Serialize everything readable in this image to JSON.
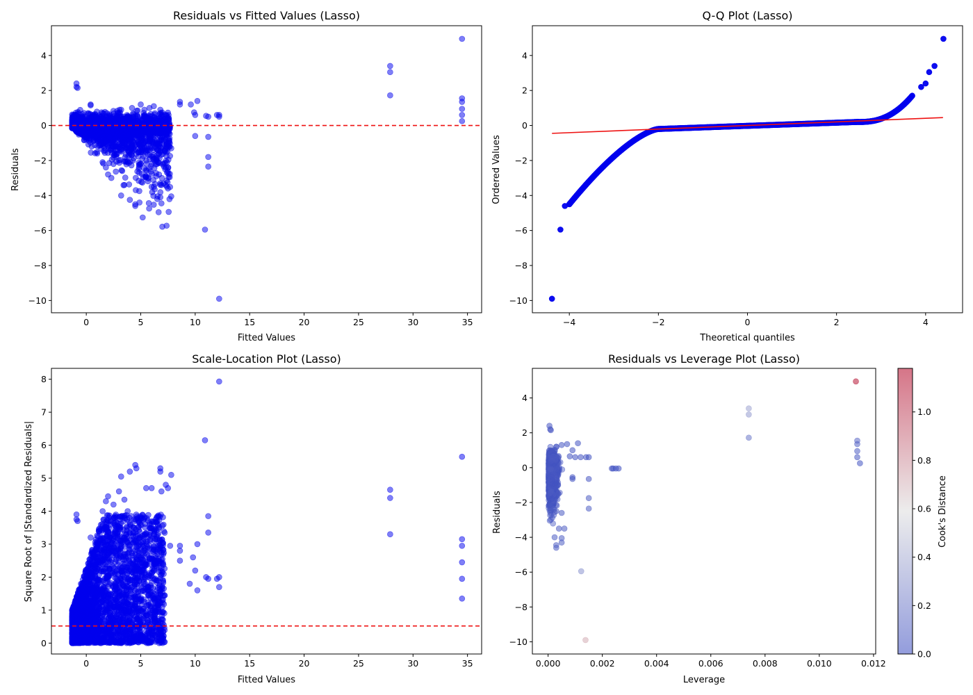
{
  "colors": {
    "points": "#0000ee",
    "refline": "#ee1111",
    "axes": "#000000",
    "cmap_low": "#3b4cc0",
    "cmap_mid": "#dddddd",
    "cmap_high": "#b40426"
  },
  "chart_data": [
    {
      "id": "resid-fitted",
      "type": "scatter",
      "title": "Residuals vs Fitted Values (Lasso)",
      "xlabel": "Fitted Values",
      "ylabel": "Residuals",
      "xlim": [
        -3.2,
        36.3
      ],
      "ylim": [
        -10.7,
        5.7
      ],
      "xticks": [
        0,
        5,
        10,
        15,
        20,
        25,
        30,
        35
      ],
      "yticks": [
        -10,
        -8,
        -6,
        -4,
        -2,
        0,
        2,
        4
      ],
      "tick_labels_x": [
        "0",
        "5",
        "10",
        "15",
        "20",
        "25",
        "30",
        "35"
      ],
      "tick_labels_y": [
        "−10",
        "−8",
        "−6",
        "−4",
        "−2",
        "0",
        "2",
        "4"
      ],
      "reference_line": {
        "orientation": "horizontal",
        "y": 0,
        "style": "dashed"
      },
      "points": [
        [
          -0.9,
          2.4
        ],
        [
          -0.9,
          2.2
        ],
        [
          -0.8,
          2.15
        ],
        [
          0.4,
          1.2
        ],
        [
          0.4,
          1.15
        ],
        [
          1.5,
          0.7
        ],
        [
          2.1,
          0.55
        ],
        [
          3.2,
          0.9
        ],
        [
          4.2,
          1.0
        ],
        [
          5.0,
          1.2
        ],
        [
          5.8,
          1.0
        ],
        [
          6.2,
          1.1
        ],
        [
          6.8,
          0.9
        ],
        [
          8.6,
          1.35
        ],
        [
          8.6,
          1.2
        ],
        [
          9.6,
          1.2
        ],
        [
          9.9,
          0.75
        ],
        [
          10.2,
          1.4
        ],
        [
          10.0,
          0.6
        ],
        [
          11.0,
          0.55
        ],
        [
          11.2,
          0.5
        ],
        [
          12.0,
          0.6
        ],
        [
          12.2,
          0.6
        ],
        [
          12.2,
          0.5
        ],
        [
          0.0,
          -0.8
        ],
        [
          0.5,
          -1.2
        ],
        [
          1.0,
          -1.6
        ],
        [
          1.5,
          -2.1
        ],
        [
          1.8,
          -2.4
        ],
        [
          2.0,
          -2.8
        ],
        [
          2.3,
          -3.0
        ],
        [
          2.5,
          -2.2
        ],
        [
          3.0,
          -2.0
        ],
        [
          3.3,
          -2.6
        ],
        [
          3.2,
          -4.0
        ],
        [
          3.5,
          -3.4
        ],
        [
          4.0,
          -4.25
        ],
        [
          4.5,
          -4.5
        ],
        [
          4.5,
          -4.6
        ],
        [
          5.0,
          -2.2
        ],
        [
          5.5,
          -1.5
        ],
        [
          6.0,
          -3.5
        ],
        [
          6.2,
          -3.5
        ],
        [
          6.5,
          -1.7
        ],
        [
          6.8,
          -3.3
        ],
        [
          6.8,
          -4.1
        ],
        [
          6.9,
          -4.45
        ],
        [
          7.3,
          -3.4
        ],
        [
          7.5,
          -3.6
        ],
        [
          7.8,
          -4.05
        ],
        [
          7.6,
          -1.2
        ],
        [
          7.8,
          -1.3
        ],
        [
          10.0,
          -0.6
        ],
        [
          10.9,
          -5.95
        ],
        [
          11.2,
          -0.65
        ],
        [
          11.2,
          -1.8
        ],
        [
          11.2,
          -2.35
        ],
        [
          12.2,
          -9.9
        ],
        [
          27.9,
          3.4
        ],
        [
          27.9,
          3.05
        ],
        [
          27.9,
          1.72
        ],
        [
          34.5,
          4.95
        ],
        [
          34.5,
          1.55
        ],
        [
          34.5,
          1.35
        ],
        [
          34.5,
          0.95
        ],
        [
          34.5,
          0.6
        ],
        [
          34.5,
          0.25
        ]
      ]
    },
    {
      "id": "qq",
      "type": "scatter",
      "title": "Q-Q Plot (Lasso)",
      "xlabel": "Theoretical quantiles",
      "ylabel": "Ordered Values",
      "xlim": [
        -4.83,
        4.83
      ],
      "ylim": [
        -10.7,
        5.7
      ],
      "xticks": [
        -4,
        -2,
        0,
        2,
        4
      ],
      "yticks": [
        -10,
        -8,
        -6,
        -4,
        -2,
        0,
        2,
        4
      ],
      "tick_labels_x": [
        "−4",
        "−2",
        "0",
        "2",
        "4"
      ],
      "tick_labels_y": [
        "−10",
        "−8",
        "−6",
        "−4",
        "−2",
        "0",
        "2",
        "4"
      ],
      "fit_line": {
        "x": [
          -4.39,
          4.39
        ],
        "y": [
          -0.45,
          0.45
        ]
      },
      "outlier_points": [
        [
          -4.39,
          -9.9
        ],
        [
          -4.2,
          -5.95
        ],
        [
          -4.1,
          -4.6
        ],
        [
          -4.0,
          -4.5
        ],
        [
          3.9,
          2.2
        ],
        [
          4.0,
          2.4
        ],
        [
          4.08,
          3.05
        ],
        [
          4.2,
          3.4
        ],
        [
          4.4,
          4.95
        ]
      ]
    },
    {
      "id": "scale-location",
      "type": "scatter",
      "title": "Scale-Location Plot (Lasso)",
      "xlabel": "Fitted Values",
      "ylabel": "Square Root of |Standardized Residuals|",
      "xlim": [
        -3.2,
        36.3
      ],
      "ylim": [
        -0.33,
        8.33
      ],
      "xticks": [
        0,
        5,
        10,
        15,
        20,
        25,
        30,
        35
      ],
      "yticks": [
        0,
        1,
        2,
        3,
        4,
        5,
        6,
        7,
        8
      ],
      "tick_labels_x": [
        "0",
        "5",
        "10",
        "15",
        "20",
        "25",
        "30",
        "35"
      ],
      "tick_labels_y": [
        "0",
        "1",
        "2",
        "3",
        "4",
        "5",
        "6",
        "7",
        "8"
      ],
      "reference_line": {
        "orientation": "horizontal",
        "y": 0.52,
        "style": "dashed"
      },
      "points": [
        [
          -0.9,
          3.9
        ],
        [
          -0.9,
          3.75
        ],
        [
          -0.8,
          3.7
        ],
        [
          0.4,
          3.2
        ],
        [
          1.5,
          4.0
        ],
        [
          1.8,
          4.3
        ],
        [
          2.0,
          4.45
        ],
        [
          2.5,
          4.2
        ],
        [
          3.0,
          4.6
        ],
        [
          3.2,
          5.05
        ],
        [
          3.5,
          4.35
        ],
        [
          3.8,
          4.0
        ],
        [
          4.0,
          5.2
        ],
        [
          4.5,
          5.4
        ],
        [
          4.6,
          5.3
        ],
        [
          5.0,
          3.75
        ],
        [
          5.5,
          4.7
        ],
        [
          6.0,
          4.7
        ],
        [
          6.2,
          3.3
        ],
        [
          6.8,
          5.3
        ],
        [
          6.8,
          5.2
        ],
        [
          6.9,
          4.6
        ],
        [
          7.3,
          4.8
        ],
        [
          7.5,
          4.7
        ],
        [
          7.8,
          5.1
        ],
        [
          7.7,
          2.95
        ],
        [
          8.6,
          2.95
        ],
        [
          8.6,
          2.8
        ],
        [
          8.6,
          2.5
        ],
        [
          9.5,
          1.8
        ],
        [
          9.8,
          2.6
        ],
        [
          10.2,
          3.0
        ],
        [
          10.0,
          2.2
        ],
        [
          10.2,
          1.6
        ],
        [
          10.9,
          6.15
        ],
        [
          11.2,
          3.85
        ],
        [
          11.2,
          3.35
        ],
        [
          11.0,
          2.0
        ],
        [
          11.2,
          1.95
        ],
        [
          12.0,
          1.95
        ],
        [
          12.2,
          2.0
        ],
        [
          12.2,
          1.7
        ],
        [
          12.2,
          7.93
        ],
        [
          27.9,
          4.65
        ],
        [
          27.9,
          4.4
        ],
        [
          27.9,
          3.3
        ],
        [
          34.5,
          5.65
        ],
        [
          34.5,
          3.15
        ],
        [
          34.5,
          2.95
        ],
        [
          34.5,
          2.45
        ],
        [
          34.5,
          1.95
        ],
        [
          34.5,
          1.35
        ]
      ]
    },
    {
      "id": "resid-leverage",
      "type": "scatter",
      "title": "Residuals vs Leverage Plot (Lasso)",
      "xlabel": "Leverage",
      "ylabel": "Residuals",
      "colorbar_label": "Cook's Distance",
      "color_range": [
        0,
        1.18
      ],
      "colorbar_ticks": [
        0.0,
        0.2,
        0.4,
        0.6,
        0.8,
        1.0
      ],
      "colorbar_tick_labels": [
        "0.0",
        "0.2",
        "0.4",
        "0.6",
        "0.8",
        "1.0"
      ],
      "xlim": [
        -0.00058,
        0.01208
      ],
      "ylim": [
        -10.7,
        5.7
      ],
      "xticks": [
        0.0,
        0.002,
        0.004,
        0.006,
        0.008,
        0.01,
        0.012
      ],
      "yticks": [
        -10,
        -8,
        -6,
        -4,
        -2,
        0,
        2,
        4
      ],
      "tick_labels_x": [
        "0.000",
        "0.002",
        "0.004",
        "0.006",
        "0.008",
        "0.010",
        "0.012"
      ],
      "tick_labels_y": [
        "−10",
        "−8",
        "−6",
        "−4",
        "−2",
        "0",
        "2",
        "4"
      ],
      "points": [
        [
          5e-05,
          2.4,
          0.05
        ],
        [
          8e-05,
          2.2,
          0.05
        ],
        [
          0.0001,
          2.15,
          0.05
        ],
        [
          0.0003,
          1.2,
          0.04
        ],
        [
          0.0005,
          1.3,
          0.04
        ],
        [
          0.0007,
          1.35,
          0.04
        ],
        [
          0.0009,
          1.0,
          0.04
        ],
        [
          0.0011,
          1.4,
          0.04
        ],
        [
          0.0008,
          0.65,
          0.03
        ],
        [
          0.001,
          0.6,
          0.03
        ],
        [
          0.0012,
          0.6,
          0.03
        ],
        [
          0.0014,
          0.6,
          0.03
        ],
        [
          0.0015,
          0.6,
          0.03
        ],
        [
          0.00024,
          -4.0,
          0.08
        ],
        [
          0.0003,
          -4.45,
          0.08
        ],
        [
          0.0003,
          -4.6,
          0.08
        ],
        [
          0.0005,
          -4.3,
          0.08
        ],
        [
          0.0005,
          -4.05,
          0.08
        ],
        [
          0.0006,
          -3.5,
          0.07
        ],
        [
          0.0004,
          -3.5,
          0.07
        ],
        [
          0.0003,
          -2.5,
          0.06
        ],
        [
          0.0005,
          -2.6,
          0.06
        ],
        [
          0.0009,
          -0.55,
          0.03
        ],
        [
          0.0009,
          -0.65,
          0.03
        ],
        [
          0.0015,
          -0.65,
          0.05
        ],
        [
          0.0015,
          -1.75,
          0.07
        ],
        [
          0.0015,
          -2.35,
          0.08
        ],
        [
          0.00235,
          -0.05,
          0.02
        ],
        [
          0.0024,
          -0.05,
          0.02
        ],
        [
          0.0025,
          -0.05,
          0.02
        ],
        [
          0.0026,
          -0.05,
          0.02
        ],
        [
          0.00122,
          -5.95,
          0.3
        ],
        [
          0.00138,
          -9.9,
          0.72
        ],
        [
          0.0074,
          3.4,
          0.36
        ],
        [
          0.0074,
          3.05,
          0.33
        ],
        [
          0.0074,
          1.72,
          0.18
        ],
        [
          0.01135,
          4.95,
          1.12
        ],
        [
          0.0114,
          1.55,
          0.12
        ],
        [
          0.0114,
          1.35,
          0.1
        ],
        [
          0.0114,
          0.95,
          0.08
        ],
        [
          0.0114,
          0.6,
          0.06
        ],
        [
          0.0115,
          0.25,
          0.04
        ]
      ]
    }
  ]
}
